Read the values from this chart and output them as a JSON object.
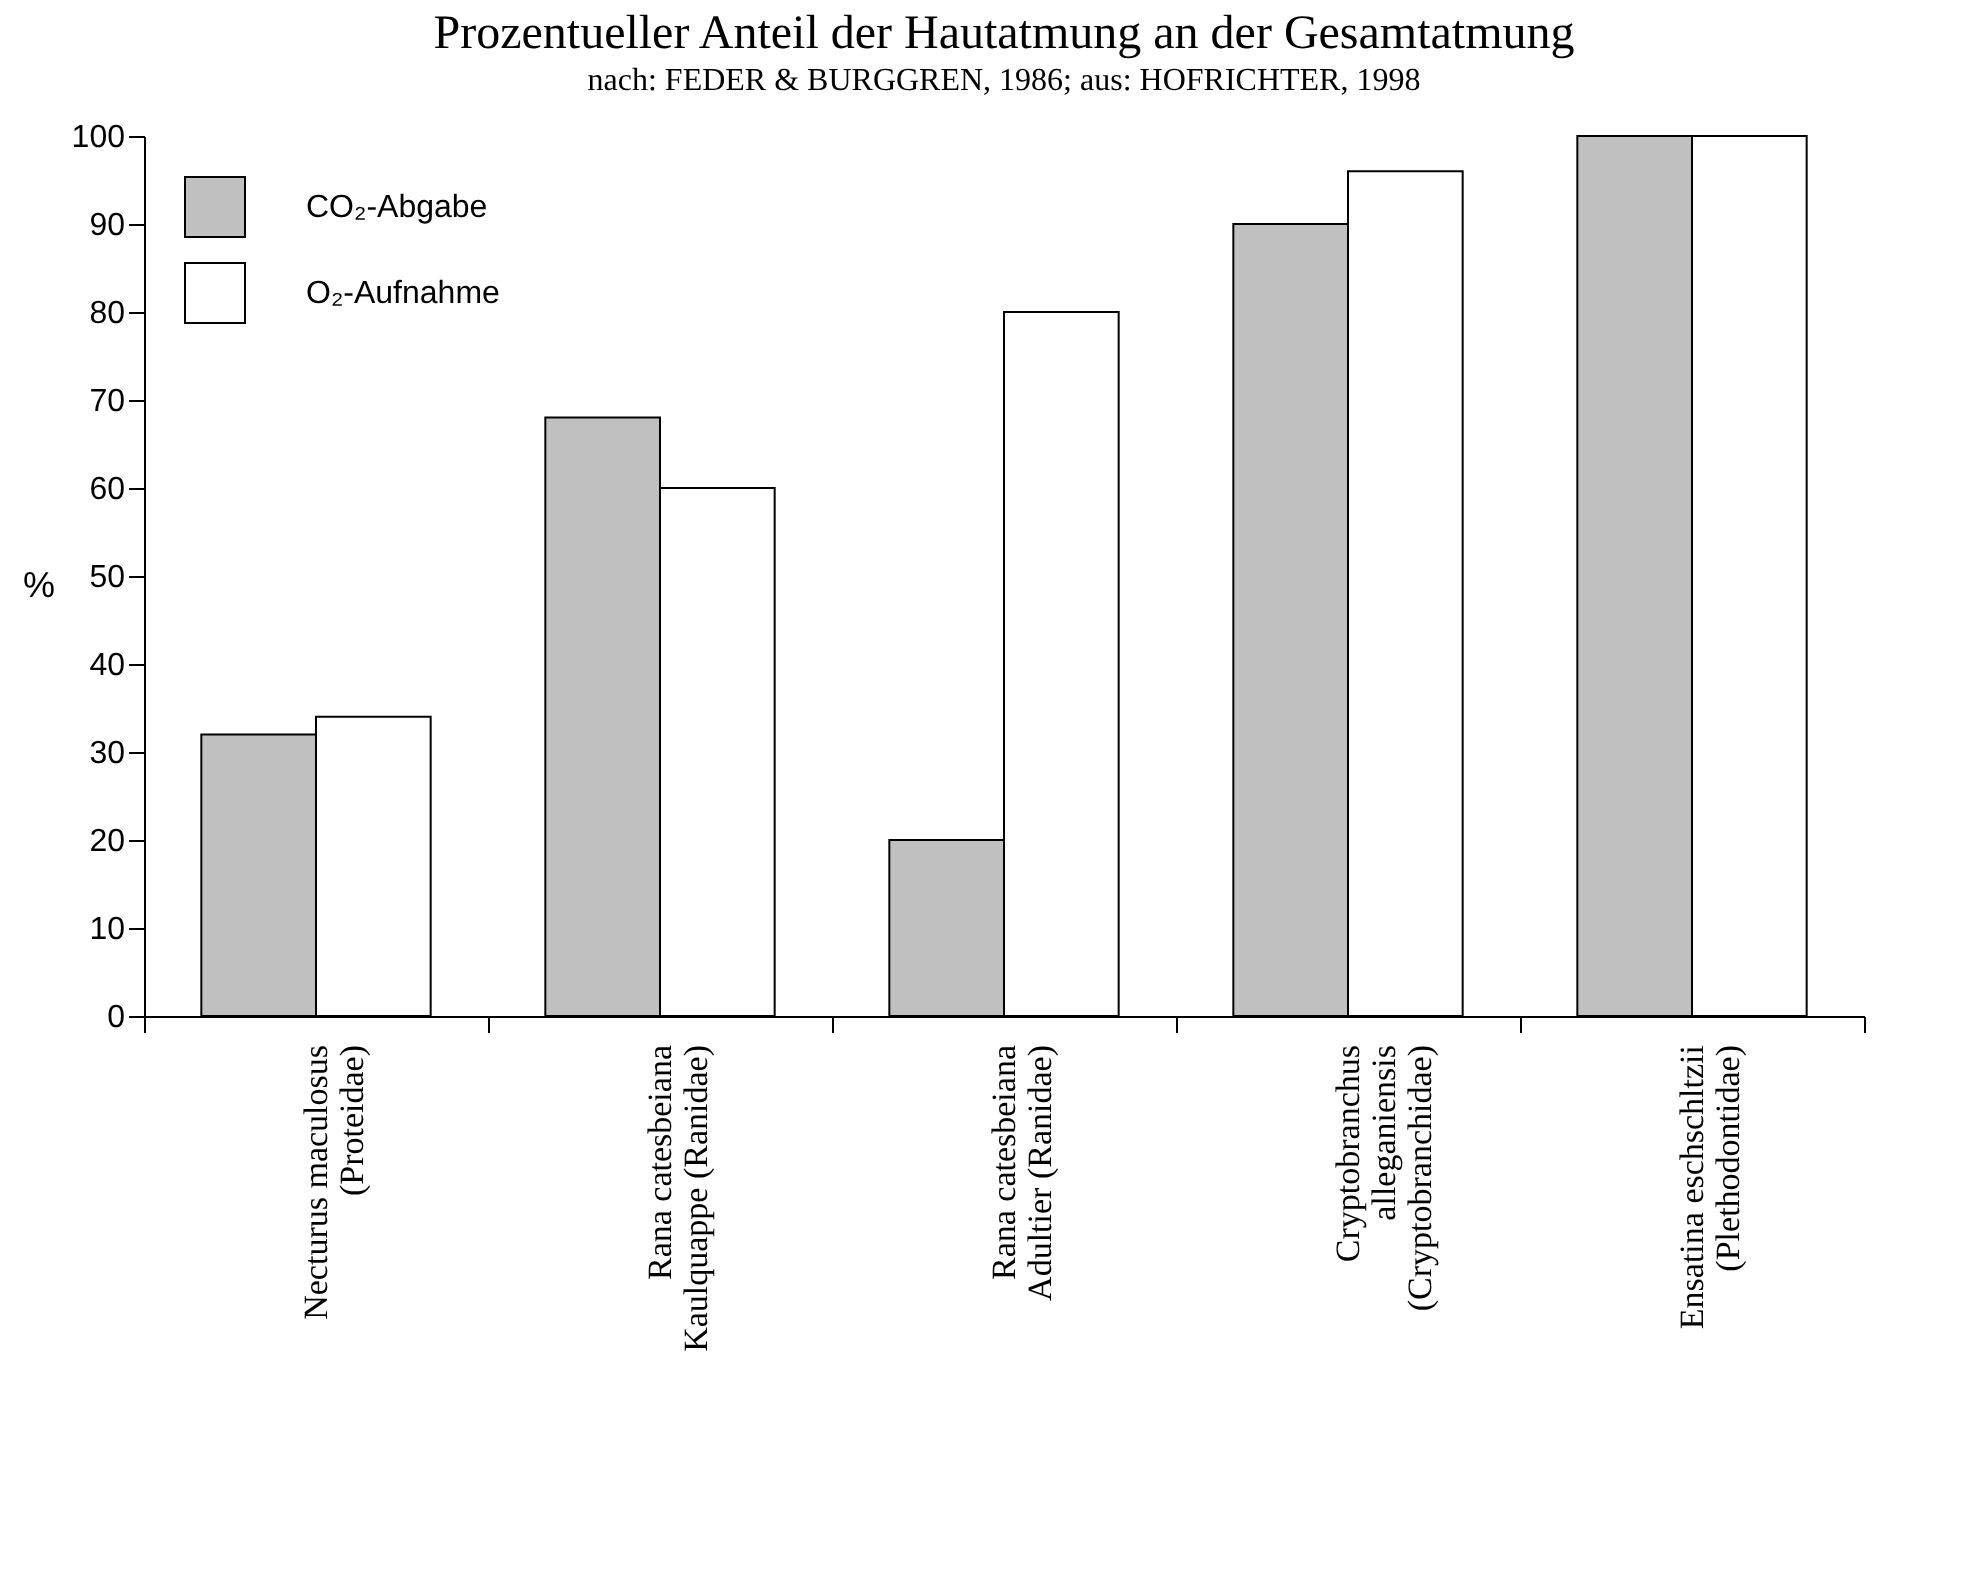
{
  "chart_data": {
    "type": "bar",
    "title": "Prozentueller Anteil der Hautatmung an der Gesamtatmung",
    "subtitle": "nach: FEDER & BURGGREN, 1986; aus: HOFRICHTER, 1998",
    "ylabel": "%",
    "categories": [
      "Necturus maculosus\n(Proteidae)",
      "Rana catesbeiana\nKaulquappe (Ranidae)",
      "Rana catesbeiana\nAdultier (Ranidae)",
      "Cryptobranchus\nalleganiensis\n(Cryptobranchidae)",
      "Ensatina eschschltzii\n(Plethodontidae)"
    ],
    "series": [
      {
        "name": "CO₂-Abgabe",
        "color": "#c0c0c0",
        "values": [
          32,
          68,
          20,
          90,
          100
        ]
      },
      {
        "name": "O₂-Aufnahme",
        "color": "#ffffff",
        "values": [
          34,
          60,
          80,
          96,
          100
        ]
      }
    ],
    "ylim": [
      0,
      100
    ],
    "yticks": [
      0,
      10,
      20,
      30,
      40,
      50,
      60,
      70,
      80,
      90,
      100
    ],
    "grid": false,
    "legend": "top left"
  }
}
